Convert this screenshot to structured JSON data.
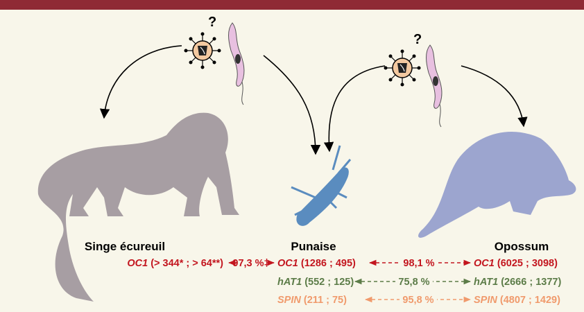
{
  "question_marks": [
    "?",
    "?"
  ],
  "species": [
    "Singe écureuil",
    "Punaise",
    "Opossum"
  ],
  "rows": [
    {
      "color": "#c3161f",
      "gene": "OC1",
      "counts": [
        "(> 344* ; > 64**)",
        "(1286 ; 495)",
        "(6025 ; 3098)"
      ],
      "identity": [
        "97,3 %‡",
        "98,1 %"
      ]
    },
    {
      "color": "#5c7c48",
      "gene": "hAT1",
      "counts": [
        "(552 ; 125)",
        "(2666 ; 1377)"
      ],
      "identity": [
        "75,8 %"
      ]
    },
    {
      "color": "#f09a6c",
      "gene": "SPIN",
      "counts": [
        "(211 ; 75)",
        "(4807 ; 1429)"
      ],
      "identity": [
        "95,8 %"
      ]
    }
  ]
}
